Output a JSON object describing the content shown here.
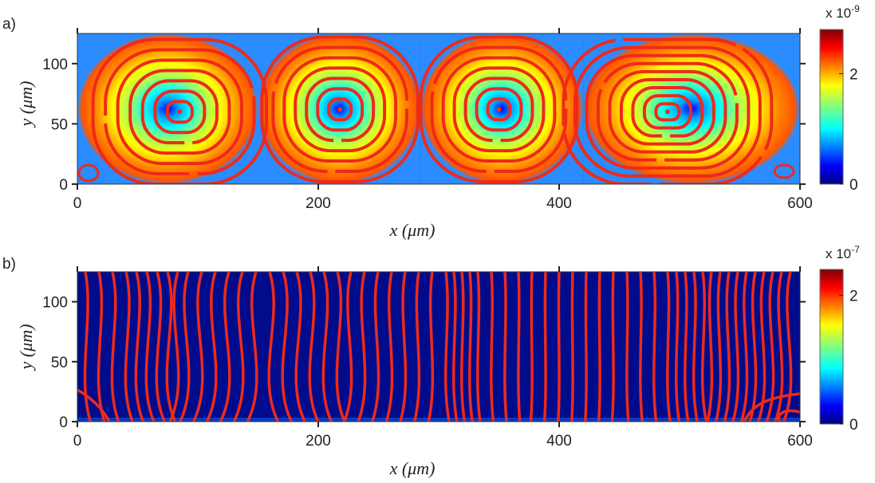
{
  "chart_data": [
    {
      "panel_label": "a)",
      "type": "heatmap",
      "xlabel": "x (μm)",
      "ylabel": "y (μm)",
      "xlim": [
        0,
        600
      ],
      "ylim": [
        0,
        125
      ],
      "x_ticks": [
        0,
        200,
        400,
        600
      ],
      "y_ticks": [
        0,
        50,
        100
      ],
      "colormap": "jet",
      "colorbar": {
        "multiplier": "x 10",
        "exponent": "-9",
        "ticks": [
          0,
          2
        ],
        "range": [
          0,
          2.8
        ]
      },
      "field": "four counter-rotating vortex cells with streamlines",
      "vortex_centers": [
        {
          "x": 85,
          "y": 60
        },
        {
          "x": 218,
          "y": 62
        },
        {
          "x": 350,
          "y": 62
        },
        {
          "x": 490,
          "y": 60
        }
      ],
      "cell_boundaries": [
        150,
        285,
        420
      ],
      "streamline_color": "#ee2a1a"
    },
    {
      "panel_label": "b)",
      "type": "heatmap",
      "xlabel": "x (μm)",
      "ylabel": "y (μm)",
      "xlim": [
        0,
        600
      ],
      "ylim": [
        0,
        125
      ],
      "x_ticks": [
        0,
        200,
        400,
        600
      ],
      "y_ticks": [
        0,
        50,
        100
      ],
      "colormap": "jet",
      "colorbar": {
        "multiplier": "x 10",
        "exponent": "-7",
        "ticks": [
          0,
          2
        ],
        "range": [
          0,
          2.4
        ]
      },
      "field": "near-zero magnitude (dark blue) with wavy vertical streamlines",
      "streamline_color": "#ee2a1a"
    }
  ]
}
